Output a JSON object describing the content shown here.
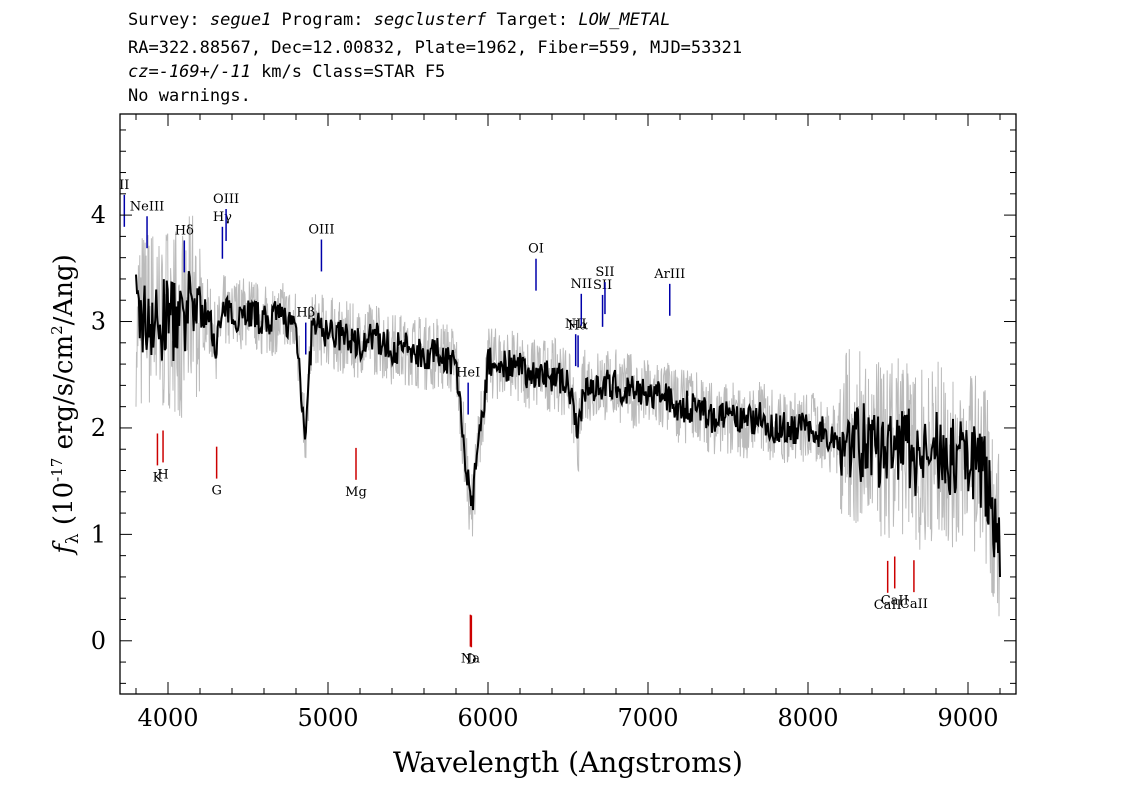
{
  "header": {
    "line1": {
      "survey_label": "Survey: ",
      "survey": "segue1",
      "program_label": " Program: ",
      "program": "segclusterf",
      "target_label": " Target: ",
      "target": "LOW_METAL"
    },
    "line2": "RA=322.88567, Dec=12.00832, Plate=1962, Fiber=559, MJD=53321",
    "line3": {
      "cz": "cz=-169+/-11",
      "rest": " km/s Class=STAR F5"
    },
    "line4": "No warnings."
  },
  "chart_data": {
    "type": "line",
    "xlabel": "Wavelength (Angstroms)",
    "ylabel": "f_λ (10^-17 erg/s/cm^2/Ang)",
    "xlim": [
      3700,
      9300
    ],
    "ylim": [
      -0.5,
      4.95
    ],
    "xticks": [
      4000,
      5000,
      6000,
      7000,
      8000,
      9000
    ],
    "yticks": [
      0,
      1,
      2,
      3,
      4
    ],
    "series": [
      {
        "style": "smoothed",
        "color": "#000000",
        "x": [
          3800,
          3850,
          3900,
          3950,
          4000,
          4050,
          4100,
          4150,
          4200,
          4250,
          4300,
          4350,
          4400,
          4500,
          4600,
          4700,
          4800,
          4861,
          4900,
          5000,
          5100,
          5200,
          5300,
          5400,
          5500,
          5600,
          5700,
          5800,
          5893,
          6000,
          6100,
          6200,
          6300,
          6400,
          6500,
          6563,
          6600,
          6700,
          6800,
          6900,
          7000,
          7100,
          7200,
          7300,
          7400,
          7500,
          7600,
          7700,
          7800,
          7900,
          8000,
          8100,
          8200,
          8300,
          8400,
          8500,
          8600,
          8700,
          8800,
          8900,
          9000,
          9100,
          9200
        ],
        "y": [
          3.1,
          3.0,
          3.05,
          2.9,
          3.1,
          3.0,
          2.9,
          3.2,
          3.1,
          3.05,
          2.8,
          3.1,
          3.05,
          3.1,
          3.0,
          3.05,
          2.95,
          1.9,
          2.95,
          2.9,
          2.85,
          2.8,
          2.85,
          2.75,
          2.75,
          2.7,
          2.7,
          2.6,
          1.2,
          2.6,
          2.6,
          2.55,
          2.5,
          2.5,
          2.45,
          1.9,
          2.4,
          2.4,
          2.4,
          2.35,
          2.3,
          2.3,
          2.2,
          2.2,
          2.1,
          2.1,
          2.05,
          2.1,
          2.0,
          2.0,
          2.0,
          1.95,
          1.9,
          1.9,
          1.8,
          1.75,
          1.85,
          1.7,
          1.8,
          1.7,
          1.75,
          1.6,
          0.9
        ]
      }
    ],
    "emission_lines": [
      {
        "label": "Hδ",
        "x": 4102
      },
      {
        "label": "NeIII",
        "x": 3869
      },
      {
        "label": "II",
        "x": 3727
      },
      {
        "label": "Hγ",
        "x": 4340
      },
      {
        "label": "OIII",
        "x": 4363
      },
      {
        "label": "Hβ",
        "x": 4861
      },
      {
        "label": "OIII",
        "x": 4959
      },
      {
        "label": "HeI",
        "x": 5876
      },
      {
        "label": "OI",
        "x": 6300
      },
      {
        "label": "NII",
        "x": 6548
      },
      {
        "label": "Hα",
        "x": 6563
      },
      {
        "label": "NII",
        "x": 6583
      },
      {
        "label": "SII",
        "x": 6716
      },
      {
        "label": "SII",
        "x": 6731
      },
      {
        "label": "ArIII",
        "x": 7136
      }
    ],
    "absorption_lines": [
      {
        "label": "K",
        "x": 3934
      },
      {
        "label": "H",
        "x": 3969
      },
      {
        "label": "G",
        "x": 4304
      },
      {
        "label": "Mg",
        "x": 5175
      },
      {
        "label": "Na",
        "x": 5890
      },
      {
        "label": "D",
        "x": 5896
      },
      {
        "label": "CaII",
        "x": 8498
      },
      {
        "label": "CaII",
        "x": 8542
      },
      {
        "label": "CaII",
        "x": 8662
      }
    ],
    "colors": {
      "raw": "#bbbbbb",
      "smoothed": "#000000",
      "emission": "#0000aa",
      "absorption": "#cc0000"
    }
  }
}
